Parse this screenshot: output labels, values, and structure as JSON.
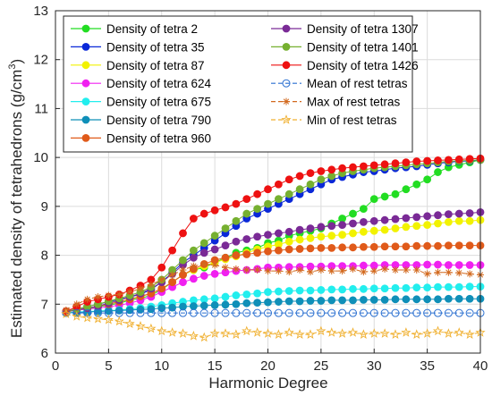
{
  "chart_data": {
    "type": "line",
    "title": "",
    "xlabel": "Harmonic Degree",
    "ylabel_main": "Estimated density of tetrahedrons (g/cm",
    "ylabel_sup": "3",
    "ylabel_close": ")",
    "xlim": [
      0,
      40
    ],
    "ylim": [
      6,
      13
    ],
    "xticks": [
      "0",
      "5",
      "10",
      "15",
      "20",
      "25",
      "30",
      "35",
      "40"
    ],
    "yticks": [
      "6",
      "7",
      "8",
      "9",
      "10",
      "11",
      "12",
      "13"
    ],
    "grid": true,
    "legend_position": "top-inside",
    "x": [
      1,
      2,
      3,
      4,
      5,
      6,
      7,
      8,
      9,
      10,
      11,
      12,
      13,
      14,
      15,
      16,
      17,
      18,
      19,
      20,
      21,
      22,
      23,
      24,
      25,
      26,
      27,
      28,
      29,
      30,
      31,
      32,
      33,
      34,
      35,
      36,
      37,
      38,
      39,
      40
    ],
    "series": [
      {
        "name": "Density of tetra 2",
        "color": "#22dd22",
        "marker": "circle-filled",
        "values": [
          6.85,
          6.88,
          6.9,
          6.95,
          6.98,
          7.02,
          7.08,
          7.12,
          7.18,
          7.3,
          7.45,
          7.6,
          7.7,
          7.75,
          7.85,
          7.95,
          8.05,
          8.1,
          8.15,
          8.25,
          8.3,
          8.4,
          8.45,
          8.5,
          8.55,
          8.65,
          8.75,
          8.85,
          8.95,
          9.15,
          9.2,
          9.25,
          9.35,
          9.45,
          9.55,
          9.7,
          9.8,
          9.85,
          9.9,
          9.95
        ]
      },
      {
        "name": "Density of tetra 35",
        "color": "#0a28d8",
        "marker": "circle-filled",
        "values": [
          6.85,
          6.9,
          6.95,
          7.0,
          7.05,
          7.1,
          7.15,
          7.2,
          7.3,
          7.45,
          7.65,
          7.85,
          8.0,
          8.15,
          8.3,
          8.45,
          8.6,
          8.75,
          8.85,
          8.95,
          9.05,
          9.15,
          9.25,
          9.35,
          9.45,
          9.55,
          9.6,
          9.65,
          9.7,
          9.72,
          9.75,
          9.78,
          9.8,
          9.82,
          9.85,
          9.88,
          9.9,
          9.92,
          9.93,
          9.95
        ]
      },
      {
        "name": "Density of tetra 87",
        "color": "#f2f200",
        "marker": "circle-filled",
        "values": [
          6.85,
          6.88,
          6.92,
          6.96,
          7.0,
          7.05,
          7.1,
          7.15,
          7.22,
          7.32,
          7.45,
          7.6,
          7.7,
          7.78,
          7.85,
          7.92,
          7.98,
          8.05,
          8.12,
          8.18,
          8.22,
          8.28,
          8.32,
          8.35,
          8.38,
          8.4,
          8.42,
          8.45,
          8.48,
          8.5,
          8.52,
          8.55,
          8.58,
          8.6,
          8.62,
          8.65,
          8.68,
          8.7,
          8.7,
          8.72
        ]
      },
      {
        "name": "Density of tetra 624",
        "color": "#f020f0",
        "marker": "circle-filled",
        "values": [
          6.85,
          6.88,
          6.9,
          6.92,
          6.95,
          6.98,
          7.02,
          7.08,
          7.15,
          7.25,
          7.35,
          7.45,
          7.52,
          7.58,
          7.62,
          7.65,
          7.68,
          7.7,
          7.72,
          7.75,
          7.75,
          7.76,
          7.76,
          7.77,
          7.77,
          7.78,
          7.78,
          7.78,
          7.79,
          7.79,
          7.8,
          7.8,
          7.8,
          7.8,
          7.81,
          7.81,
          7.8,
          7.8,
          7.8,
          7.8
        ]
      },
      {
        "name": "Density of tetra 675",
        "color": "#22eeee",
        "marker": "circle-filled",
        "values": [
          6.83,
          6.84,
          6.85,
          6.86,
          6.87,
          6.88,
          6.9,
          6.92,
          6.95,
          6.98,
          7.02,
          7.05,
          7.08,
          7.1,
          7.12,
          7.15,
          7.18,
          7.2,
          7.22,
          7.25,
          7.26,
          7.27,
          7.28,
          7.28,
          7.29,
          7.3,
          7.3,
          7.31,
          7.31,
          7.32,
          7.32,
          7.33,
          7.33,
          7.34,
          7.34,
          7.35,
          7.35,
          7.35,
          7.36,
          7.36
        ]
      },
      {
        "name": "Density of tetra 790",
        "color": "#0f8fb8",
        "marker": "circle-filled",
        "values": [
          6.82,
          6.83,
          6.84,
          6.85,
          6.86,
          6.87,
          6.88,
          6.89,
          6.9,
          6.92,
          6.93,
          6.95,
          6.96,
          6.97,
          6.98,
          6.99,
          7.0,
          7.02,
          7.03,
          7.04,
          7.05,
          7.06,
          7.06,
          7.07,
          7.07,
          7.08,
          7.08,
          7.08,
          7.09,
          7.09,
          7.09,
          7.1,
          7.1,
          7.1,
          7.1,
          7.1,
          7.11,
          7.11,
          7.11,
          7.11
        ]
      },
      {
        "name": "Density of tetra 960",
        "color": "#e05a1a",
        "marker": "circle-filled",
        "values": [
          6.85,
          6.88,
          6.92,
          6.96,
          7.0,
          7.05,
          7.1,
          7.16,
          7.22,
          7.32,
          7.45,
          7.6,
          7.72,
          7.82,
          7.9,
          7.95,
          8.0,
          8.02,
          8.05,
          8.08,
          8.1,
          8.12,
          8.13,
          8.14,
          8.15,
          8.15,
          8.16,
          8.16,
          8.17,
          8.17,
          8.18,
          8.18,
          8.18,
          8.19,
          8.19,
          8.19,
          8.2,
          8.2,
          8.2,
          8.2
        ]
      },
      {
        "name": "Density of tetra 1307",
        "color": "#7a2a96",
        "marker": "circle-filled",
        "values": [
          6.85,
          6.88,
          6.92,
          6.96,
          7.02,
          7.08,
          7.15,
          7.22,
          7.32,
          7.45,
          7.62,
          7.8,
          7.95,
          8.05,
          8.12,
          8.2,
          8.28,
          8.33,
          8.38,
          8.42,
          8.45,
          8.48,
          8.52,
          8.55,
          8.58,
          8.6,
          8.62,
          8.65,
          8.68,
          8.7,
          8.72,
          8.74,
          8.76,
          8.78,
          8.8,
          8.82,
          8.84,
          8.85,
          8.86,
          8.88
        ]
      },
      {
        "name": "Density of tetra 1401",
        "color": "#76b030",
        "marker": "circle-filled",
        "values": [
          6.85,
          6.9,
          6.95,
          7.0,
          7.06,
          7.12,
          7.18,
          7.25,
          7.35,
          7.5,
          7.7,
          7.9,
          8.1,
          8.25,
          8.4,
          8.55,
          8.7,
          8.85,
          8.95,
          9.05,
          9.15,
          9.25,
          9.35,
          9.45,
          9.55,
          9.62,
          9.68,
          9.72,
          9.75,
          9.78,
          9.8,
          9.82,
          9.84,
          9.86,
          9.88,
          9.9,
          9.92,
          9.93,
          9.94,
          9.95
        ]
      },
      {
        "name": "Density of tetra 1426",
        "color": "#ee1111",
        "marker": "circle-filled",
        "values": [
          6.85,
          6.95,
          7.05,
          7.1,
          7.15,
          7.2,
          7.28,
          7.38,
          7.5,
          7.75,
          8.1,
          8.45,
          8.75,
          8.85,
          8.92,
          8.98,
          9.05,
          9.15,
          9.25,
          9.35,
          9.45,
          9.55,
          9.62,
          9.68,
          9.72,
          9.75,
          9.78,
          9.8,
          9.82,
          9.84,
          9.86,
          9.88,
          9.9,
          9.92,
          9.93,
          9.94,
          9.95,
          9.96,
          9.97,
          9.98
        ]
      },
      {
        "name": "Mean of rest tetras",
        "color": "#2a6fd0",
        "marker": "circle-open",
        "dashed": true,
        "values": [
          6.82,
          6.82,
          6.82,
          6.82,
          6.82,
          6.82,
          6.82,
          6.82,
          6.82,
          6.82,
          6.82,
          6.82,
          6.82,
          6.82,
          6.82,
          6.82,
          6.82,
          6.82,
          6.82,
          6.82,
          6.82,
          6.82,
          6.82,
          6.82,
          6.82,
          6.82,
          6.82,
          6.82,
          6.82,
          6.82,
          6.82,
          6.82,
          6.82,
          6.82,
          6.82,
          6.82,
          6.82,
          6.82,
          6.82,
          6.82
        ]
      },
      {
        "name": "Max of rest tetras",
        "color": "#d2691e",
        "marker": "asterisk",
        "dashed": true,
        "values": [
          6.88,
          7.0,
          7.1,
          7.15,
          7.18,
          7.2,
          7.25,
          7.32,
          7.4,
          7.5,
          7.6,
          7.7,
          7.78,
          7.82,
          7.8,
          7.75,
          7.72,
          7.7,
          7.7,
          7.68,
          7.68,
          7.66,
          7.7,
          7.66,
          7.7,
          7.68,
          7.68,
          7.72,
          7.66,
          7.68,
          7.72,
          7.7,
          7.7,
          7.7,
          7.62,
          7.65,
          7.65,
          7.64,
          7.62,
          7.6
        ]
      },
      {
        "name": "Min of rest tetras",
        "color": "#f0b030",
        "marker": "star",
        "dashed": true,
        "values": [
          6.8,
          6.75,
          6.72,
          6.7,
          6.68,
          6.65,
          6.6,
          6.55,
          6.5,
          6.45,
          6.42,
          6.4,
          6.35,
          6.32,
          6.4,
          6.4,
          6.38,
          6.45,
          6.42,
          6.4,
          6.38,
          6.42,
          6.38,
          6.38,
          6.45,
          6.42,
          6.4,
          6.42,
          6.38,
          6.4,
          6.4,
          6.38,
          6.42,
          6.38,
          6.4,
          6.45,
          6.4,
          6.42,
          6.38,
          6.42
        ]
      }
    ]
  }
}
